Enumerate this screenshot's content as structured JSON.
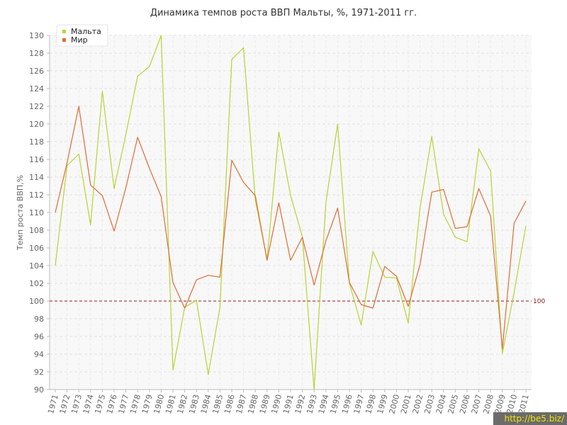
{
  "chart_data": {
    "type": "line",
    "title": "Динамика темпов роста ВВП Мальты, %, 1971-2011 гг.",
    "xlabel": "",
    "ylabel": "Темп роста ВВП,%",
    "ylim": [
      90,
      130
    ],
    "yticks": [
      90,
      92,
      94,
      96,
      98,
      100,
      102,
      104,
      106,
      108,
      110,
      112,
      114,
      116,
      118,
      120,
      122,
      124,
      126,
      128,
      130
    ],
    "grid": true,
    "legend_position": "top-left",
    "categories": [
      "1971",
      "1972",
      "1973",
      "1974",
      "1975",
      "1976",
      "1977",
      "1978",
      "1979",
      "1980",
      "1981",
      "1982",
      "1983",
      "1984",
      "1985",
      "1986",
      "1987",
      "1988",
      "1989",
      "1990",
      "1991",
      "1992",
      "1993",
      "1994",
      "1995",
      "1996",
      "1997",
      "1998",
      "1999",
      "2000",
      "2001",
      "2002",
      "2003",
      "2004",
      "2005",
      "2006",
      "2007",
      "2008",
      "2009",
      "2010",
      "2011"
    ],
    "series": [
      {
        "name": "Мальта",
        "color": "#b5d334",
        "values": [
          104,
          115.3,
          116.6,
          108.6,
          123.7,
          112.7,
          118.8,
          125.4,
          126.5,
          130.0,
          92.2,
          99.3,
          100.1,
          91.7,
          99.3,
          127.3,
          128.6,
          111.4,
          104.7,
          119.1,
          111.9,
          107.3,
          90.0,
          111.1,
          120.0,
          102.0,
          97.3,
          105.6,
          102.7,
          102.6,
          97.5,
          110.5,
          118.6,
          109.8,
          107.2,
          106.7,
          117.2,
          114.7,
          94.1,
          101.0,
          108.5
        ]
      },
      {
        "name": "Мир",
        "color": "#e06a35",
        "values": [
          110.0,
          115.6,
          122.0,
          113.1,
          111.9,
          107.9,
          112.8,
          118.5,
          115.0,
          111.8,
          102.1,
          99.2,
          102.4,
          102.9,
          102.7,
          115.9,
          113.4,
          111.9,
          104.6,
          111.1,
          104.6,
          107.2,
          101.8,
          106.8,
          110.5,
          102.1,
          99.6,
          99.2,
          103.9,
          102.8,
          99.4,
          104.1,
          112.3,
          112.6,
          108.2,
          108.4,
          112.7,
          109.6,
          94.6,
          108.8,
          111.3
        ]
      }
    ],
    "reference_line": {
      "value": 100,
      "label": "100",
      "color": "#8b1a1a"
    }
  },
  "watermark": "http://be5.biz/"
}
